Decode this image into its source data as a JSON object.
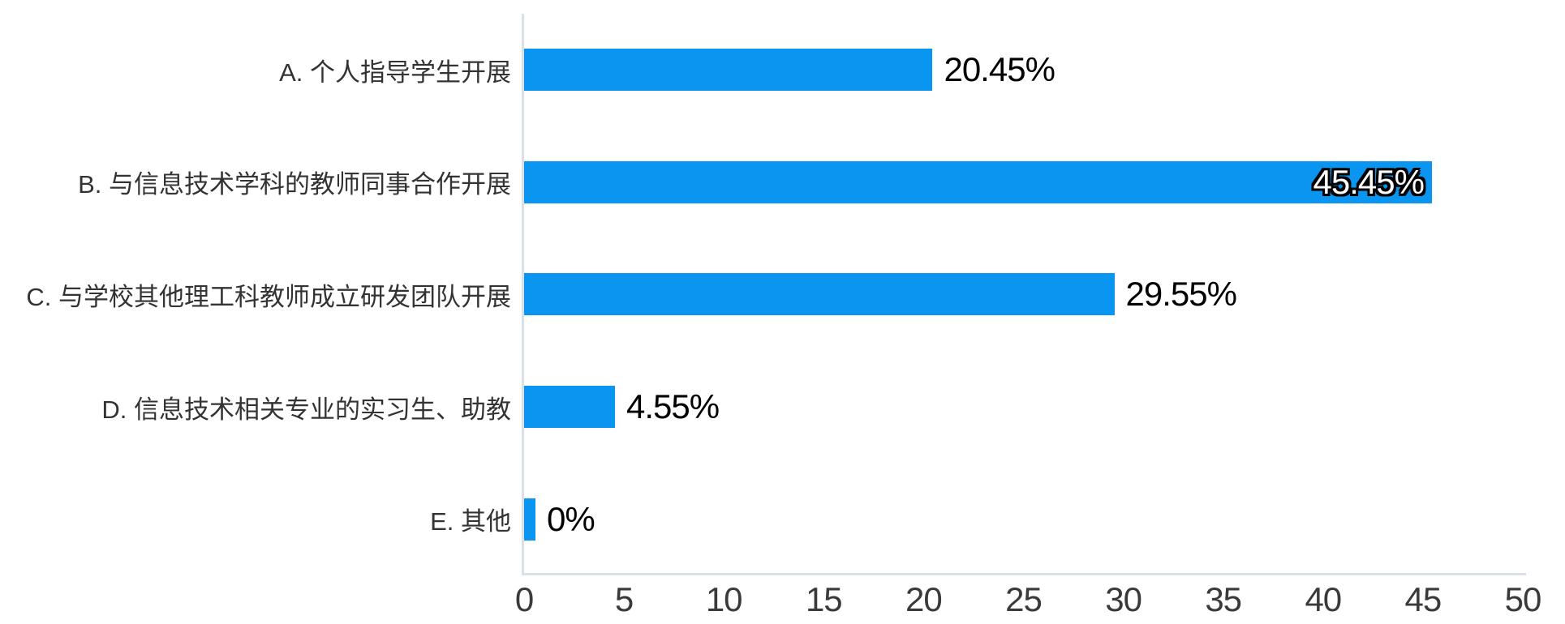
{
  "chart_data": {
    "type": "bar",
    "orientation": "horizontal",
    "title": "",
    "categories": [
      "A. 个人指导学生开展",
      "B. 与信息技术学科的教师同事合作开展",
      "C. 与学校其他理工科教师成立研发团队开展",
      "D. 信息技术相关专业的实习生、助教",
      "E. 其他"
    ],
    "values": [
      20.45,
      45.45,
      29.55,
      4.55,
      0
    ],
    "value_labels": [
      "20.45%",
      "45.45%",
      "29.55%",
      "4.55%",
      "0%"
    ],
    "x_ticks": [
      "0",
      "5",
      "10",
      "15",
      "20",
      "25",
      "30",
      "35",
      "40",
      "45",
      "50"
    ],
    "xlim": [
      0,
      50
    ],
    "grid": false,
    "legend_position": "none",
    "colors": {
      "bar": "#0A96F0",
      "axis_line": "#D9E0E9",
      "category_text": "#333333",
      "value_text": "#000000",
      "tick_text": "#3a3a3a",
      "inside_value_text": "#ffffff",
      "inside_value_outline": "#000000",
      "background": "#ffffff"
    }
  }
}
